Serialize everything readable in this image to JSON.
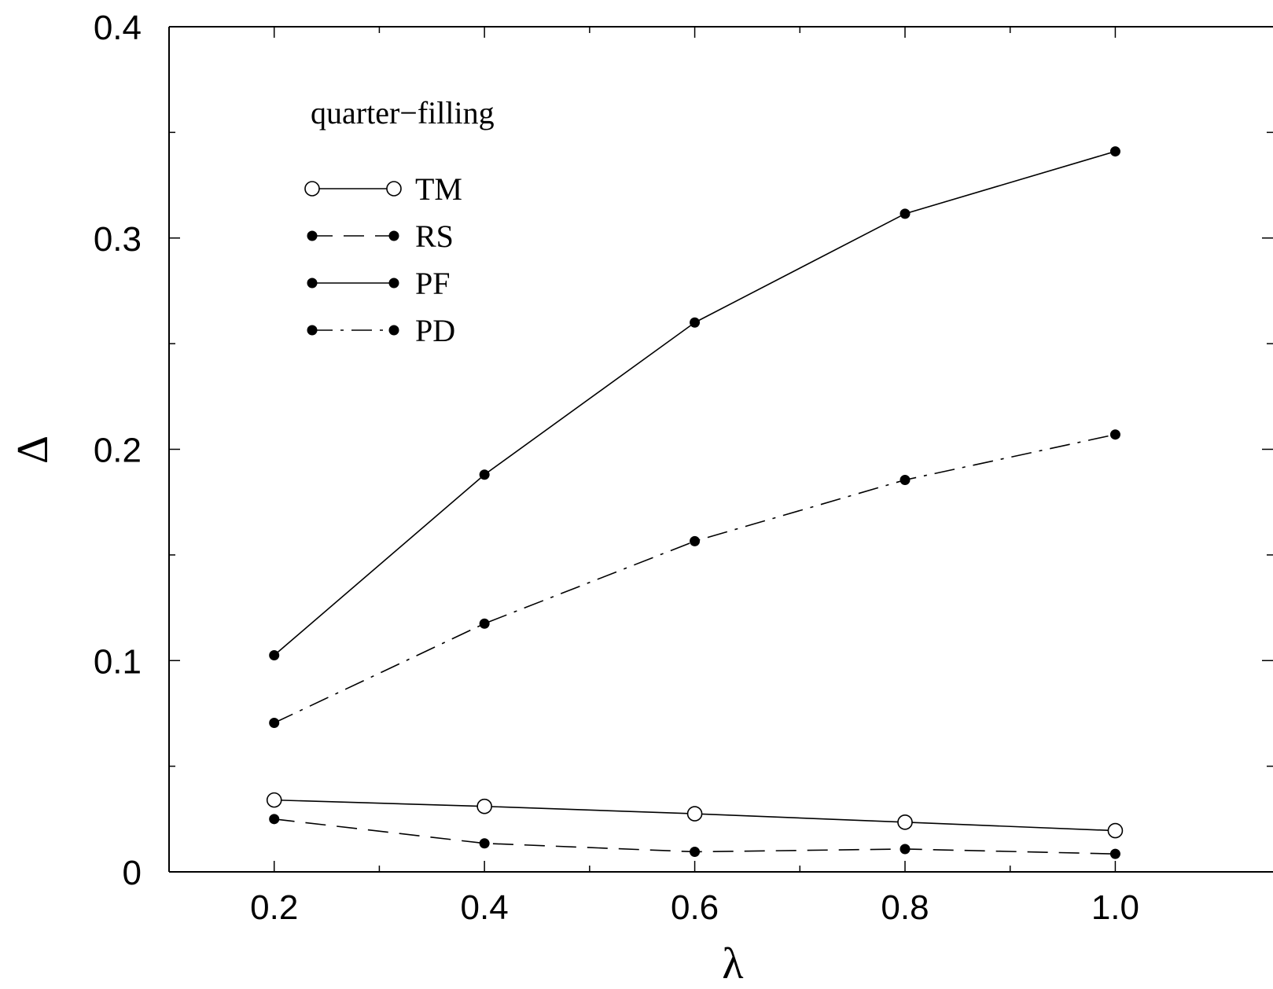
{
  "chart_data": {
    "type": "line",
    "title": "",
    "xlabel": "λ",
    "ylabel": "Δ",
    "xlim": [
      0.1,
      1.15
    ],
    "ylim": [
      0,
      0.4
    ],
    "x_ticks": [
      0.2,
      0.4,
      0.6,
      0.8,
      1.0
    ],
    "x_tick_labels": [
      "0.2",
      "0.4",
      "0.6",
      "0.8",
      "1.0"
    ],
    "x_minor_ticks": [
      0.3,
      0.5,
      0.7,
      0.9
    ],
    "y_ticks": [
      0,
      0.1,
      0.2,
      0.3,
      0.4
    ],
    "y_tick_labels": [
      "0",
      "0.1",
      "0.2",
      "0.3",
      "0.4"
    ],
    "y_minor_ticks": [
      0.05,
      0.15,
      0.25,
      0.35
    ],
    "grid": false,
    "legend_position": "top-left",
    "annotation": "quarter−filling",
    "x": [
      0.2,
      0.4,
      0.6,
      0.8,
      1.0
    ],
    "series": [
      {
        "name": "TM",
        "values": [
          0.034,
          0.031,
          0.0275,
          0.0235,
          0.0195
        ],
        "line_style": "solid",
        "marker": "open-circle"
      },
      {
        "name": "RS",
        "values": [
          0.025,
          0.0135,
          0.0095,
          0.0108,
          0.0085
        ],
        "line_style": "dashed",
        "marker": "filled-circle"
      },
      {
        "name": "PF",
        "values": [
          0.1025,
          0.188,
          0.26,
          0.3115,
          0.341
        ],
        "line_style": "solid",
        "marker": "filled-circle"
      },
      {
        "name": "PD",
        "values": [
          0.0705,
          0.1175,
          0.1565,
          0.1855,
          0.207
        ],
        "line_style": "dash-dot",
        "marker": "filled-circle"
      }
    ],
    "colors": {
      "line": "#000000",
      "background": "#ffffff"
    }
  }
}
